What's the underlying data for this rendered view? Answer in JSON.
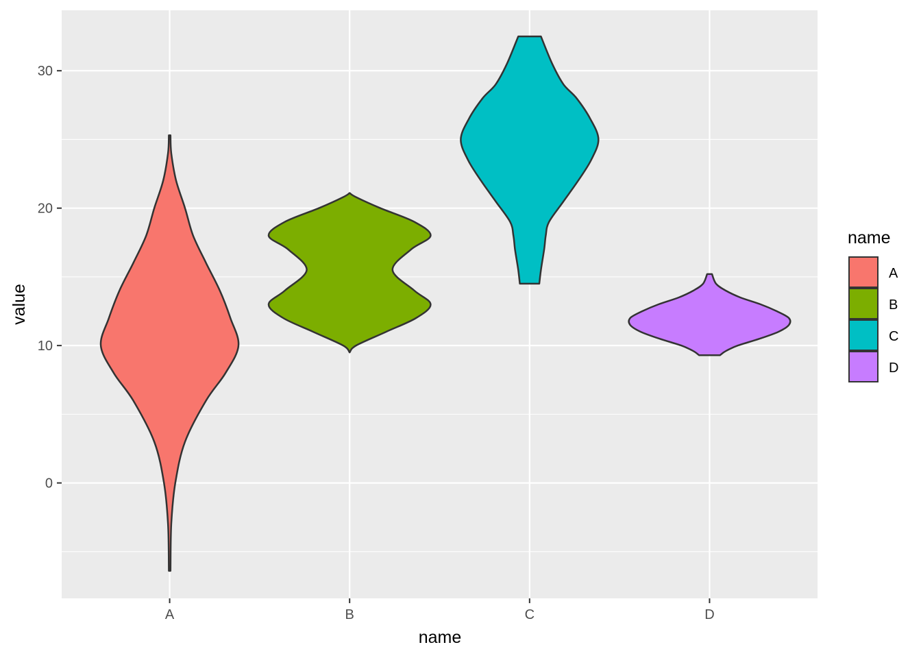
{
  "chart_data": {
    "type": "violin",
    "title": "",
    "xlabel": "name",
    "ylabel": "value",
    "categories": [
      "A",
      "B",
      "C",
      "D"
    ],
    "ylim": [
      -8.4,
      34.4
    ],
    "yticks": [
      0,
      10,
      20,
      30
    ],
    "grid": true,
    "panel_background": "#EBEBEB",
    "grid_color": "#FFFFFF",
    "outline_color": "#333333",
    "legend": {
      "title": "name",
      "position": "right",
      "entries": [
        "A",
        "B",
        "C",
        "D"
      ]
    },
    "series": [
      {
        "name": "A",
        "color": "#F8766D",
        "min": -6.4,
        "max": 25.3,
        "density": [
          [
            -6.4,
            0.01
          ],
          [
            -3,
            0.02
          ],
          [
            0,
            0.07
          ],
          [
            3,
            0.19
          ],
          [
            6,
            0.45
          ],
          [
            8,
            0.69
          ],
          [
            10,
            0.85
          ],
          [
            12,
            0.75
          ],
          [
            14,
            0.62
          ],
          [
            16,
            0.45
          ],
          [
            18,
            0.29
          ],
          [
            20,
            0.19
          ],
          [
            22,
            0.08
          ],
          [
            24,
            0.02
          ],
          [
            25.3,
            0.01
          ]
        ]
      },
      {
        "name": "B",
        "color": "#7CAE00",
        "min": 9.5,
        "max": 21.1,
        "density": [
          [
            9.5,
            0.0
          ],
          [
            10,
            0.08
          ],
          [
            11,
            0.45
          ],
          [
            12,
            0.82
          ],
          [
            13,
            1.0
          ],
          [
            14,
            0.8
          ],
          [
            15.5,
            0.53
          ],
          [
            17,
            0.76
          ],
          [
            18,
            1.0
          ],
          [
            19,
            0.8
          ],
          [
            20,
            0.38
          ],
          [
            20.8,
            0.08
          ],
          [
            21.1,
            0.0
          ]
        ]
      },
      {
        "name": "C",
        "color": "#00BFC4",
        "min": 14.5,
        "max": 32.5,
        "density": [
          [
            14.5,
            0.12
          ],
          [
            15.5,
            0.14
          ],
          [
            17,
            0.18
          ],
          [
            18,
            0.2
          ],
          [
            19,
            0.24
          ],
          [
            20.5,
            0.42
          ],
          [
            22,
            0.6
          ],
          [
            23.5,
            0.76
          ],
          [
            25,
            0.85
          ],
          [
            26.5,
            0.75
          ],
          [
            28,
            0.58
          ],
          [
            29,
            0.42
          ],
          [
            30.5,
            0.28
          ],
          [
            32.5,
            0.14
          ]
        ]
      },
      {
        "name": "D",
        "color": "#C77CFF",
        "min": 9.3,
        "max": 15.2,
        "density": [
          [
            9.3,
            0.13
          ],
          [
            9.6,
            0.2
          ],
          [
            10,
            0.35
          ],
          [
            10.5,
            0.62
          ],
          [
            11,
            0.85
          ],
          [
            11.5,
            0.98
          ],
          [
            12,
            0.98
          ],
          [
            12.5,
            0.83
          ],
          [
            13,
            0.63
          ],
          [
            13.5,
            0.38
          ],
          [
            14,
            0.2
          ],
          [
            14.5,
            0.08
          ],
          [
            15.2,
            0.03
          ]
        ]
      }
    ]
  }
}
